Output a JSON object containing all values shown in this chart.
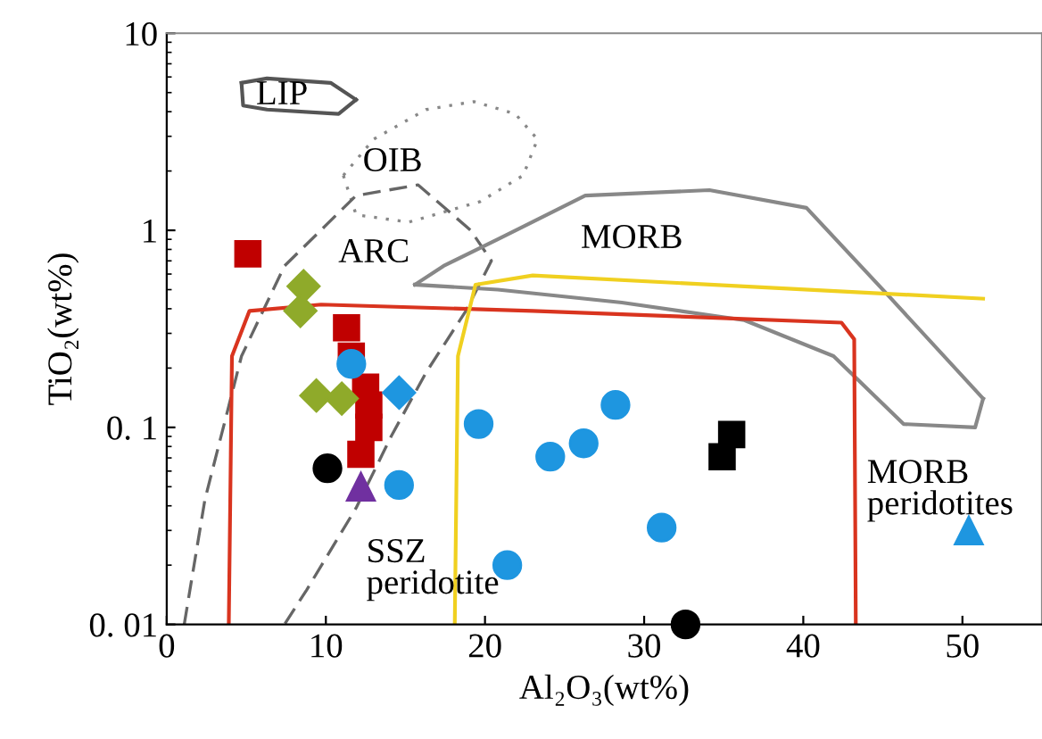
{
  "chart_data": {
    "type": "scatter",
    "xlabel": "Al₂O₃(wt%)",
    "ylabel": "TiO₂(wt%)",
    "log": "y",
    "xlim": [
      0,
      55
    ],
    "ylim": [
      0.01,
      10
    ],
    "xticks": [
      0,
      10,
      20,
      30,
      40,
      50
    ],
    "yticks": [
      {
        "value": 0.01,
        "label": "0. 01"
      },
      {
        "value": 0.1,
        "label": "0. 1"
      },
      1,
      10
    ],
    "grid": false,
    "series": [
      {
        "type": "line",
        "color": "#555555",
        "line_style": "solid",
        "marker": "none",
        "x": [
          4.7,
          6.3,
          10.3,
          11.9
        ],
        "values": [
          5.6,
          5.9,
          5.6,
          4.6
        ]
      },
      {
        "type": "line",
        "color": "#555555",
        "line_style": "solid",
        "marker": "none",
        "x": [
          4.7,
          4.8,
          6.3,
          10.8,
          11.9
        ],
        "values": [
          5.6,
          4.3,
          4.1,
          3.9,
          4.6
        ]
      },
      {
        "type": "line",
        "color": "#888888",
        "line_style": "dotted",
        "marker": "none",
        "x": [
          11.1,
          13.0,
          16.3,
          19.3,
          21.9,
          23.3
        ],
        "values": [
          1.9,
          2.9,
          4.1,
          4.5,
          3.9,
          2.9
        ]
      },
      {
        "type": "line",
        "color": "#888888",
        "line_style": "dotted",
        "marker": "none",
        "x": [
          11.1,
          11.9,
          15.2,
          19.7,
          22.4,
          23.3
        ],
        "values": [
          1.9,
          1.2,
          1.1,
          1.4,
          1.9,
          2.9
        ]
      },
      {
        "type": "line",
        "color": "#666666",
        "line_style": "dashed",
        "marker": "none",
        "x": [
          1.1,
          2.4,
          4.7,
          7.4,
          11.9,
          15.8,
          19.1,
          20.4,
          18.8,
          16.3,
          14.1,
          11.9,
          8.8,
          7.4
        ],
        "values": [
          0.01,
          0.043,
          0.23,
          0.66,
          1.5,
          1.7,
          1.0,
          0.7,
          0.39,
          0.19,
          0.09,
          0.039,
          0.015,
          0.01
        ]
      },
      {
        "type": "line",
        "color": "#888888",
        "line_style": "solid",
        "marker": "none",
        "x": [
          15.6,
          17.4,
          20.8,
          26.3,
          34.1,
          40.2,
          45.2,
          51.3
        ],
        "values": [
          0.53,
          0.66,
          0.9,
          1.5,
          1.6,
          1.3,
          0.48,
          0.14
        ]
      },
      {
        "type": "line",
        "color": "#888888",
        "line_style": "solid",
        "marker": "none",
        "x": [
          15.6,
          20.8,
          28.6,
          36.3,
          41.9,
          46.3,
          50.8,
          51.3
        ],
        "values": [
          0.53,
          0.5,
          0.43,
          0.35,
          0.23,
          0.104,
          0.1,
          0.14
        ]
      },
      {
        "type": "line",
        "color": "#d9341f",
        "line_style": "solid",
        "marker": "none",
        "x": [
          3.9,
          4.1,
          5.2,
          9.7,
          23.0,
          42.4,
          43.2,
          43.3
        ],
        "values": [
          0.01,
          0.23,
          0.39,
          0.42,
          0.39,
          0.34,
          0.28,
          0.01
        ]
      },
      {
        "type": "line",
        "color": "#f0d020",
        "line_style": "solid",
        "marker": "none",
        "x": [
          18.1,
          18.3,
          19.4,
          23.0,
          51.3
        ],
        "values": [
          0.01,
          0.23,
          0.53,
          0.59,
          0.45
        ]
      },
      {
        "type": "scatter",
        "color": "#c00000",
        "marker": "square",
        "x": [
          5.1,
          11.3,
          11.6,
          12.5,
          12.7,
          12.7,
          12.2
        ],
        "values": [
          0.76,
          0.32,
          0.23,
          0.16,
          0.13,
          0.1,
          0.073
        ]
      },
      {
        "type": "scatter",
        "color": "#8faa2a",
        "marker": "diamond",
        "x": [
          8.6,
          8.4,
          9.4,
          11.0
        ],
        "values": [
          0.52,
          0.39,
          0.145,
          0.14
        ]
      },
      {
        "type": "scatter",
        "color": "#1e96e0",
        "marker": "diamond",
        "x": [
          14.6
        ],
        "values": [
          0.15
        ]
      },
      {
        "type": "scatter",
        "color": "#1e96e0",
        "marker": "circle",
        "x": [
          11.6,
          14.6,
          19.6,
          28.2,
          26.2,
          24.1,
          31.1,
          21.4
        ],
        "values": [
          0.21,
          0.051,
          0.104,
          0.13,
          0.083,
          0.071,
          0.031,
          0.02
        ]
      },
      {
        "type": "scatter",
        "color": "#000000",
        "marker": "circle",
        "x": [
          10.1,
          32.6
        ],
        "values": [
          0.062,
          0.01
        ]
      },
      {
        "type": "scatter",
        "color": "#7030a0",
        "marker": "triangle",
        "x": [
          12.2
        ],
        "values": [
          0.05
        ]
      },
      {
        "type": "scatter",
        "color": "#000000",
        "marker": "square",
        "x": [
          35.5,
          34.9
        ],
        "values": [
          0.092,
          0.071
        ]
      },
      {
        "type": "scatter",
        "color": "#1e96e0",
        "marker": "triangle",
        "x": [
          50.4
        ],
        "values": [
          0.03
        ]
      }
    ],
    "annotations": [
      "LIP",
      "OIB",
      "ARC",
      "MORB",
      "MORB\nperidotites",
      "SSZ\nperidotite"
    ]
  }
}
